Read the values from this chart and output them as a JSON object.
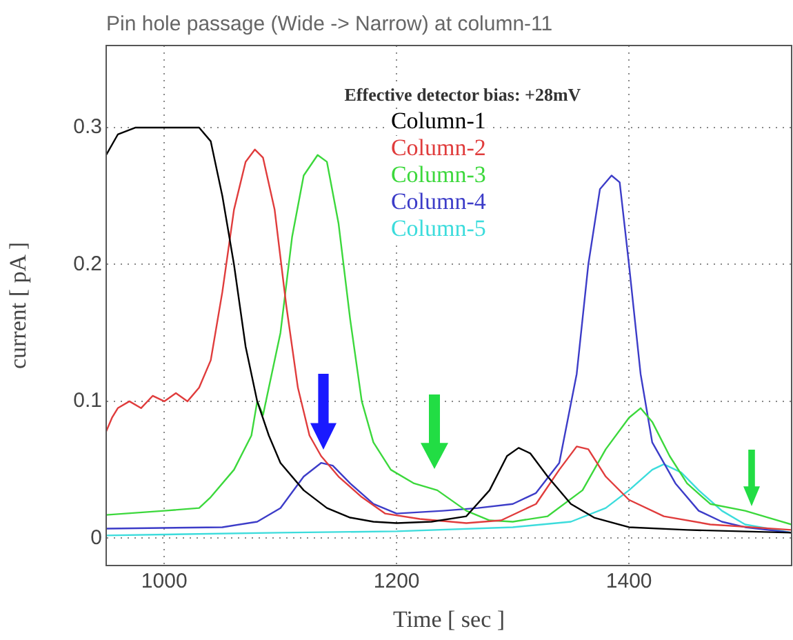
{
  "chart_data": {
    "type": "line",
    "title": "Pin hole passage (Wide -> Narrow) at column-11",
    "xlabel": "Time [ sec ]",
    "ylabel": "current [ pA ]",
    "legend_title": "Effective detector bias: +28mV",
    "legend": "top",
    "grid": true,
    "marker": "none",
    "line_style": "solid",
    "xlim": [
      950,
      1540
    ],
    "xticks": [
      1000,
      1200,
      1400
    ],
    "ylim": [
      -0.02,
      0.36
    ],
    "yticks": [
      0,
      0.1,
      0.2,
      0.3
    ],
    "series": [
      {
        "name": "Column-1",
        "color": "#000000",
        "x": [
          950,
          960,
          975,
          1000,
          1030,
          1040,
          1050,
          1060,
          1070,
          1080,
          1090,
          1100,
          1120,
          1140,
          1160,
          1180,
          1200,
          1230,
          1260,
          1280,
          1295,
          1305,
          1315,
          1330,
          1350,
          1370,
          1400,
          1450,
          1540
        ],
        "values": [
          0.28,
          0.295,
          0.3,
          0.3,
          0.3,
          0.29,
          0.25,
          0.2,
          0.14,
          0.1,
          0.075,
          0.055,
          0.035,
          0.022,
          0.015,
          0.012,
          0.011,
          0.012,
          0.016,
          0.035,
          0.06,
          0.066,
          0.062,
          0.045,
          0.025,
          0.015,
          0.008,
          0.006,
          0.004
        ]
      },
      {
        "name": "Column-2",
        "color": "#e03c3c",
        "x": [
          950,
          955,
          960,
          970,
          980,
          990,
          1000,
          1010,
          1020,
          1030,
          1040,
          1050,
          1060,
          1070,
          1078,
          1085,
          1095,
          1105,
          1115,
          1125,
          1135,
          1150,
          1170,
          1190,
          1220,
          1260,
          1290,
          1320,
          1340,
          1355,
          1365,
          1380,
          1400,
          1430,
          1470,
          1540
        ],
        "values": [
          0.078,
          0.088,
          0.095,
          0.1,
          0.095,
          0.104,
          0.1,
          0.106,
          0.1,
          0.11,
          0.13,
          0.18,
          0.24,
          0.275,
          0.284,
          0.278,
          0.24,
          0.17,
          0.11,
          0.075,
          0.06,
          0.045,
          0.03,
          0.018,
          0.014,
          0.011,
          0.013,
          0.025,
          0.05,
          0.067,
          0.065,
          0.045,
          0.028,
          0.016,
          0.01,
          0.006
        ]
      },
      {
        "name": "Column-3",
        "color": "#3cd83c",
        "x": [
          950,
          1000,
          1030,
          1040,
          1060,
          1075,
          1080,
          1085,
          1090,
          1100,
          1110,
          1120,
          1132,
          1140,
          1150,
          1160,
          1170,
          1180,
          1195,
          1215,
          1235,
          1260,
          1280,
          1300,
          1330,
          1360,
          1380,
          1400,
          1410,
          1420,
          1435,
          1450,
          1470,
          1500,
          1520,
          1540
        ],
        "values": [
          0.017,
          0.02,
          0.022,
          0.03,
          0.05,
          0.075,
          0.1,
          0.09,
          0.11,
          0.15,
          0.22,
          0.265,
          0.28,
          0.275,
          0.23,
          0.16,
          0.1,
          0.07,
          0.05,
          0.04,
          0.035,
          0.02,
          0.013,
          0.012,
          0.016,
          0.035,
          0.065,
          0.088,
          0.095,
          0.085,
          0.06,
          0.04,
          0.025,
          0.02,
          0.015,
          0.01
        ]
      },
      {
        "name": "Column-4",
        "color": "#3c3cc8",
        "x": [
          950,
          1050,
          1080,
          1100,
          1120,
          1135,
          1145,
          1160,
          1180,
          1200,
          1240,
          1270,
          1300,
          1320,
          1340,
          1355,
          1365,
          1375,
          1385,
          1392,
          1400,
          1410,
          1420,
          1440,
          1460,
          1480,
          1500,
          1540
        ],
        "values": [
          0.007,
          0.008,
          0.012,
          0.022,
          0.045,
          0.055,
          0.053,
          0.04,
          0.025,
          0.018,
          0.02,
          0.022,
          0.025,
          0.033,
          0.055,
          0.12,
          0.2,
          0.255,
          0.265,
          0.26,
          0.2,
          0.12,
          0.07,
          0.04,
          0.02,
          0.012,
          0.008,
          0.004
        ]
      },
      {
        "name": "Column-5",
        "color": "#3cdcdc",
        "x": [
          950,
          1100,
          1200,
          1300,
          1350,
          1380,
          1400,
          1420,
          1430,
          1445,
          1460,
          1480,
          1500,
          1540
        ],
        "values": [
          0.002,
          0.004,
          0.005,
          0.008,
          0.012,
          0.022,
          0.035,
          0.05,
          0.054,
          0.048,
          0.035,
          0.02,
          0.01,
          0.004
        ]
      }
    ]
  }
}
